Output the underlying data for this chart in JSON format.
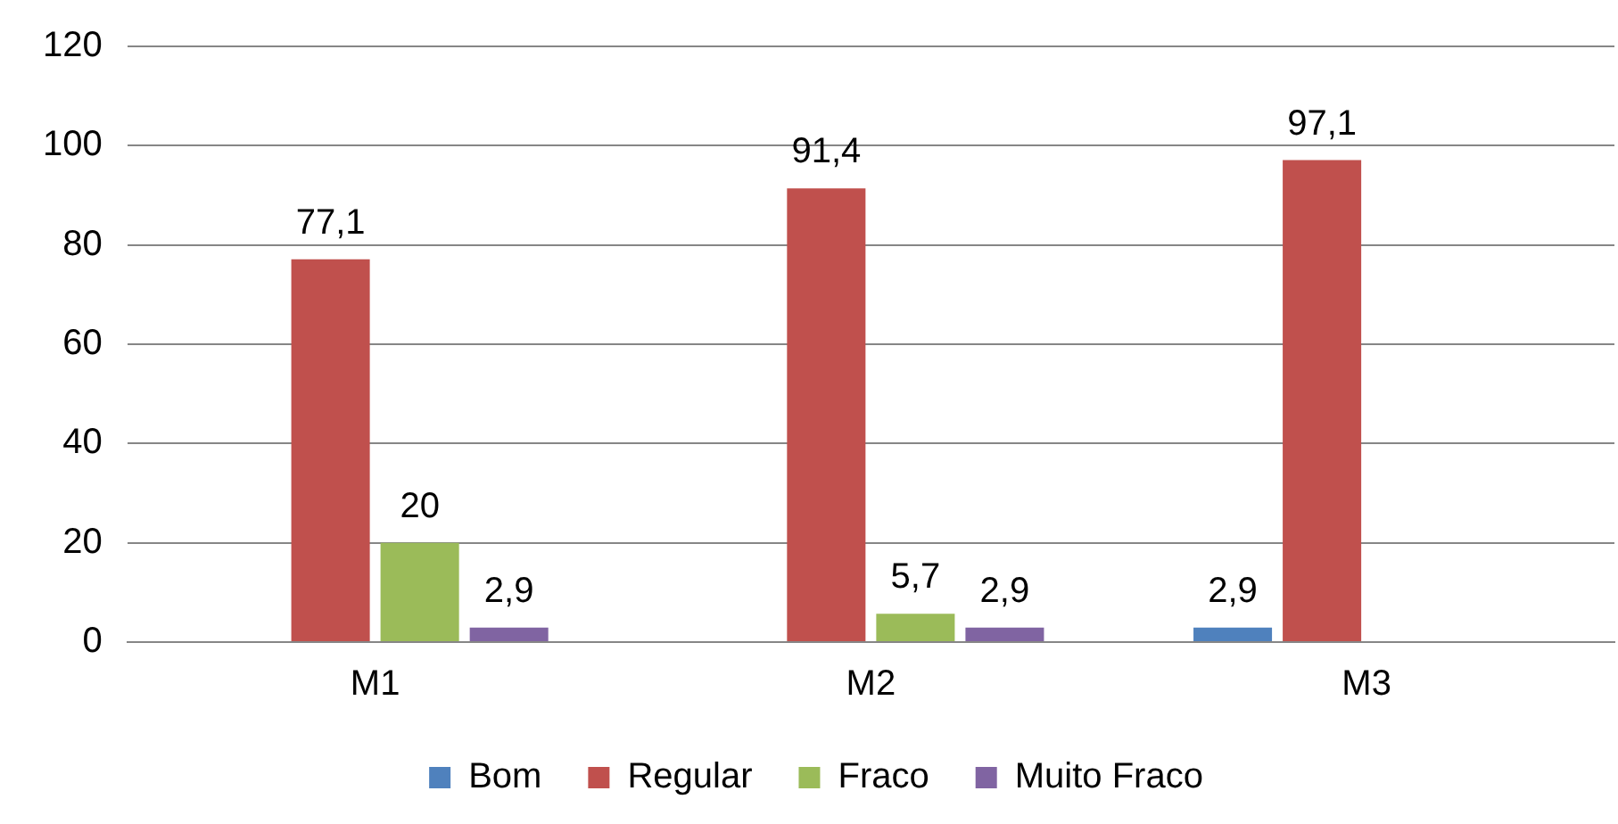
{
  "chart_data": {
    "type": "bar",
    "categories": [
      "M1",
      "M2",
      "M3"
    ],
    "series": [
      {
        "name": "Bom",
        "color": "#4f81bd",
        "values": [
          null,
          null,
          2.9
        ],
        "value_labels": [
          null,
          null,
          "2,9"
        ]
      },
      {
        "name": "Regular",
        "color": "#c0504d",
        "values": [
          77.1,
          91.4,
          97.1
        ],
        "value_labels": [
          "77,1",
          "91,4",
          "97,1"
        ]
      },
      {
        "name": "Fraco",
        "color": "#9bbb59",
        "values": [
          20,
          5.7,
          null
        ],
        "value_labels": [
          "20",
          "5,7",
          null
        ]
      },
      {
        "name": "Muito Fraco",
        "color": "#8064a2",
        "values": [
          2.9,
          2.9,
          null
        ],
        "value_labels": [
          "2,9",
          "2,9",
          null
        ]
      }
    ],
    "ylim": [
      0,
      120
    ],
    "yticks": [
      0,
      20,
      40,
      60,
      80,
      100,
      120
    ],
    "grid": "y",
    "legend": "bottom"
  }
}
